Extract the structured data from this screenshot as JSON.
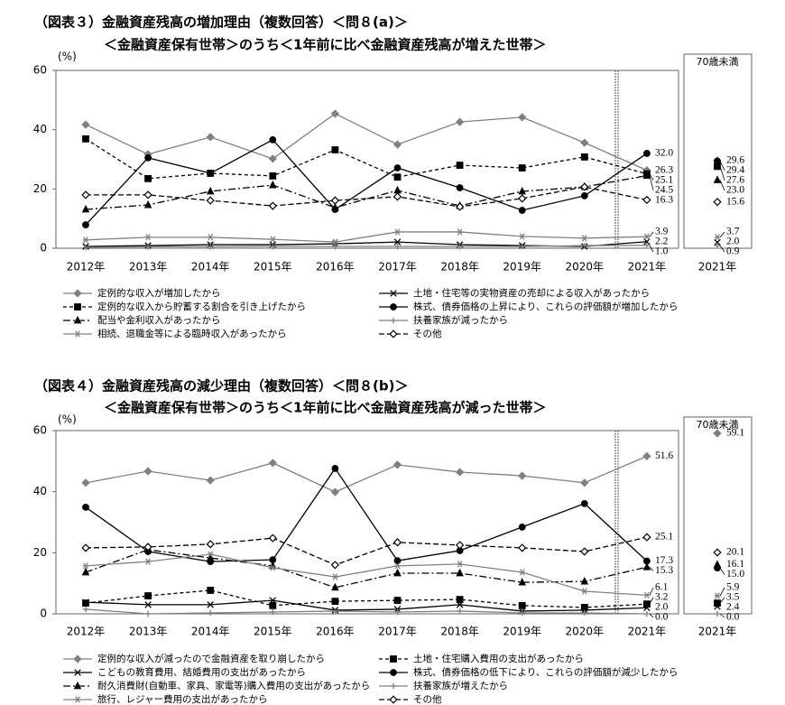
{
  "chart_data": [
    {
      "type": "line",
      "title": "（図表３）金融資産残高の増加理由（複数回答）＜問８(a)＞",
      "subtitle": "＜金融資産保有世帯＞のうち＜1年前に比べ金融資産残高が増えた世帯＞",
      "y_label": "(%)",
      "categories": [
        "2012年",
        "2013年",
        "2014年",
        "2015年",
        "2016年",
        "2017年",
        "2018年",
        "2019年",
        "2020年",
        "2021年"
      ],
      "ylim": [
        0,
        60
      ],
      "yticks": [
        0,
        20,
        40,
        60
      ],
      "grid": false,
      "side_panel": {
        "title": "70歳未満",
        "category": "2021年"
      },
      "series": [
        {
          "name": "定例的な収入が増加したから",
          "color": "#808080",
          "dash": "none",
          "marker": "diamond",
          "values": [
            41.7,
            31.7,
            37.5,
            30.2,
            45.4,
            35.0,
            42.6,
            44.2,
            35.6,
            26.3
          ],
          "value_labels": [
            null,
            null,
            null,
            null,
            null,
            null,
            null,
            null,
            null,
            "26.3"
          ],
          "side_value": 29.6,
          "side_value_label": "29.6"
        },
        {
          "name": "土地・住宅等の実物資産の売却による収入があったから",
          "color": "#000000",
          "dash": "none",
          "marker": "x",
          "values": [
            0.6,
            0.9,
            1.2,
            1.2,
            1.5,
            2.1,
            1.2,
            0.9,
            0.6,
            2.2
          ],
          "value_labels": [
            null,
            null,
            null,
            null,
            null,
            null,
            null,
            null,
            null,
            "2.2"
          ],
          "side_value": 2.0,
          "side_value_label": "2.0"
        },
        {
          "name": "定例的な収入から貯蓄する割合を引き上げたから",
          "color": "#000000",
          "dash": "4,3",
          "marker": "square",
          "values": [
            36.9,
            23.5,
            25.3,
            24.4,
            33.2,
            24.0,
            28.0,
            27.1,
            30.8,
            25.1
          ],
          "value_labels": [
            null,
            null,
            null,
            null,
            null,
            null,
            null,
            null,
            null,
            "25.1"
          ],
          "side_value": 27.6,
          "side_value_label": "27.6"
        },
        {
          "name": "株式、債券価格の上昇により、これらの評価額が増加したから",
          "color": "#000000",
          "dash": "none",
          "marker": "circle",
          "values": [
            7.9,
            30.5,
            25.3,
            36.6,
            13.1,
            27.1,
            20.4,
            12.8,
            17.7,
            32.0
          ],
          "value_labels": [
            null,
            null,
            null,
            null,
            null,
            null,
            null,
            null,
            null,
            "32.0"
          ],
          "side_value": 29.4,
          "side_value_label": "29.4"
        },
        {
          "name": "配当や金利収入があったから",
          "color": "#000000",
          "dash": "8,3,2,3",
          "marker": "triangle",
          "values": [
            13.1,
            14.6,
            19.2,
            21.3,
            13.7,
            19.5,
            14.3,
            19.2,
            20.7,
            24.5
          ],
          "value_labels": [
            null,
            null,
            null,
            null,
            null,
            null,
            null,
            null,
            null,
            "24.5"
          ],
          "side_value": 23.0,
          "side_value_label": "23.0"
        },
        {
          "name": "扶養家族が減ったから",
          "color": "#808080",
          "dash": "none",
          "marker": "plus",
          "values": [
            0.3,
            0.5,
            0.5,
            0.6,
            0.6,
            0.6,
            0.6,
            0.6,
            0.9,
            1.0
          ],
          "value_labels": [
            null,
            null,
            null,
            null,
            null,
            null,
            null,
            null,
            null,
            "1.0"
          ],
          "side_value": 0.9,
          "side_value_label": "0.9"
        },
        {
          "name": "相続、退職金等による臨時収入があったから",
          "color": "#808080",
          "dash": "none",
          "marker": "asterisk",
          "values": [
            2.8,
            3.7,
            3.7,
            3.0,
            2.1,
            5.5,
            5.5,
            4.0,
            3.4,
            3.9
          ],
          "value_labels": [
            null,
            null,
            null,
            null,
            null,
            null,
            null,
            null,
            null,
            "3.9"
          ],
          "side_value": 3.7,
          "side_value_label": "3.7"
        },
        {
          "name": "その他",
          "color": "#000000",
          "dash": "6,3",
          "marker": "open-diamond",
          "values": [
            18.0,
            18.0,
            16.1,
            14.3,
            16.1,
            17.4,
            14.0,
            16.8,
            20.7,
            16.3
          ],
          "value_labels": [
            null,
            null,
            null,
            null,
            null,
            null,
            null,
            null,
            null,
            "16.3"
          ],
          "side_value": 15.6,
          "side_value_label": "15.6"
        }
      ]
    },
    {
      "type": "line",
      "title": "（図表４）金融資産残高の減少理由（複数回答）＜問８(b)＞",
      "subtitle": "＜金融資産保有世帯＞のうち＜1年前に比べ金融資産残高が減った世帯＞",
      "y_label": "(%)",
      "categories": [
        "2012年",
        "2013年",
        "2014年",
        "2015年",
        "2016年",
        "2017年",
        "2018年",
        "2019年",
        "2020年",
        "2021年"
      ],
      "ylim": [
        0,
        60
      ],
      "yticks": [
        0,
        20,
        40,
        60
      ],
      "grid": false,
      "side_panel": {
        "title": "70歳未満",
        "category": "2021年"
      },
      "series": [
        {
          "name": "定例的な収入が減ったので金融資産を取り崩したから",
          "color": "#808080",
          "dash": "none",
          "marker": "diamond",
          "values": [
            42.9,
            46.7,
            43.7,
            49.4,
            39.9,
            48.8,
            46.4,
            45.2,
            42.9,
            51.6
          ],
          "value_labels": [
            null,
            null,
            null,
            null,
            null,
            null,
            null,
            null,
            null,
            "51.6"
          ],
          "side_value": 59.1,
          "side_value_label": "59.1"
        },
        {
          "name": "土地・住宅購入費用の支出があったから",
          "color": "#000000",
          "dash": "4,3",
          "marker": "square",
          "values": [
            3.5,
            5.9,
            7.7,
            2.7,
            4.1,
            4.4,
            4.7,
            2.7,
            2.1,
            3.2
          ],
          "value_labels": [
            null,
            null,
            null,
            null,
            null,
            null,
            null,
            null,
            null,
            "3.2"
          ],
          "side_value": 3.5,
          "side_value_label": "3.5"
        },
        {
          "name": "こどもの教育費用、結婚費用の支出があったから",
          "color": "#000000",
          "dash": "none",
          "marker": "x",
          "values": [
            3.8,
            3.0,
            3.0,
            4.4,
            1.2,
            1.5,
            3.0,
            0.9,
            1.2,
            2.0
          ],
          "value_labels": [
            null,
            null,
            null,
            null,
            null,
            null,
            null,
            null,
            null,
            "2.0"
          ],
          "side_value": 2.4,
          "side_value_label": "2.4"
        },
        {
          "name": "株式、債券価格の低下により、これらの評価額が減少したから",
          "color": "#000000",
          "dash": "none",
          "marker": "circle",
          "values": [
            34.9,
            20.4,
            17.1,
            17.7,
            47.6,
            17.4,
            20.7,
            28.4,
            36.1,
            17.3
          ],
          "value_labels": [
            null,
            null,
            null,
            null,
            null,
            null,
            null,
            null,
            null,
            "17.3"
          ],
          "side_value": 15.0,
          "side_value_label": "15.0"
        },
        {
          "name": "耐久消費財(自動車、家具、家電等)購入費用の支出があったから",
          "color": "#000000",
          "dash": "8,3,2,3",
          "marker": "triangle",
          "values": [
            13.6,
            21.0,
            18.3,
            15.7,
            8.6,
            13.3,
            13.3,
            10.3,
            10.6,
            15.3
          ],
          "value_labels": [
            null,
            null,
            null,
            null,
            null,
            null,
            null,
            null,
            null,
            "15.3"
          ],
          "side_value": 16.1,
          "side_value_label": "16.1"
        },
        {
          "name": "扶養家族が増えたから",
          "color": "#808080",
          "dash": "none",
          "marker": "plus",
          "values": [
            1.5,
            0.0,
            0.3,
            0.6,
            0.9,
            0.6,
            0.9,
            0.3,
            0.3,
            0
          ],
          "value_labels": [
            null,
            null,
            null,
            null,
            null,
            null,
            null,
            null,
            null,
            "0.0"
          ],
          "side_value": 0,
          "side_value_label": "0.0"
        },
        {
          "name": "旅行、レジャー費用の支出があったから",
          "color": "#808080",
          "dash": "none",
          "marker": "asterisk",
          "values": [
            15.7,
            17.1,
            19.5,
            15.1,
            12.1,
            15.7,
            16.3,
            13.6,
            7.4,
            6.1
          ],
          "value_labels": [
            null,
            null,
            null,
            null,
            null,
            null,
            null,
            null,
            null,
            "6.1"
          ],
          "side_value": 5.9,
          "side_value_label": "5.9"
        },
        {
          "name": "その他",
          "color": "#000000",
          "dash": "6,3",
          "marker": "open-diamond",
          "values": [
            21.6,
            21.9,
            22.8,
            24.8,
            16.0,
            23.4,
            22.5,
            21.6,
            20.4,
            25.1
          ],
          "value_labels": [
            null,
            null,
            null,
            null,
            null,
            null,
            null,
            null,
            null,
            "25.1"
          ],
          "side_value": 20.1,
          "side_value_label": "20.1"
        }
      ]
    }
  ]
}
